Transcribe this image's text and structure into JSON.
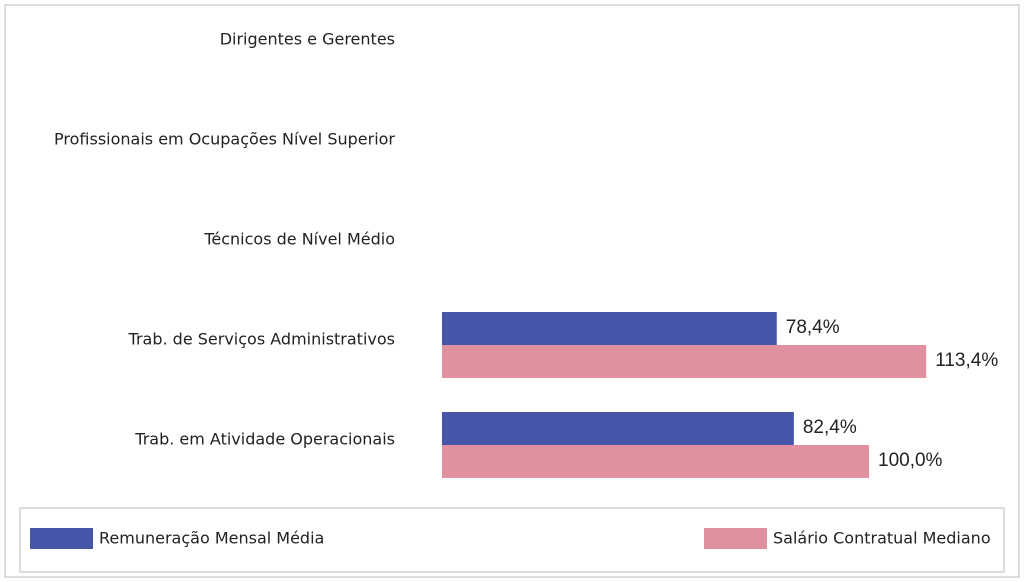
{
  "chart_data": {
    "type": "bar",
    "orientation": "horizontal",
    "categories": [
      "Dirigentes e Gerentes",
      "Profissionais em Ocupações Nível Superior",
      "Técnicos de Nível Médio",
      "Trab. de Serviços Administrativos",
      "Trab. em Atividade Operacionais"
    ],
    "series": [
      {
        "name": "Remuneração Mensal Média",
        "color": "#4655a8",
        "values": [
          null,
          null,
          null,
          78.4,
          82.4
        ],
        "value_labels": [
          null,
          null,
          null,
          "78,4%",
          "82,4%"
        ]
      },
      {
        "name": "Salário Contratual Mediano",
        "color": "#e0909e",
        "values": [
          null,
          null,
          null,
          113.4,
          100.0
        ],
        "value_labels": [
          null,
          null,
          null,
          "113,4%",
          "100,0%"
        ]
      }
    ],
    "legend": "bottom"
  }
}
